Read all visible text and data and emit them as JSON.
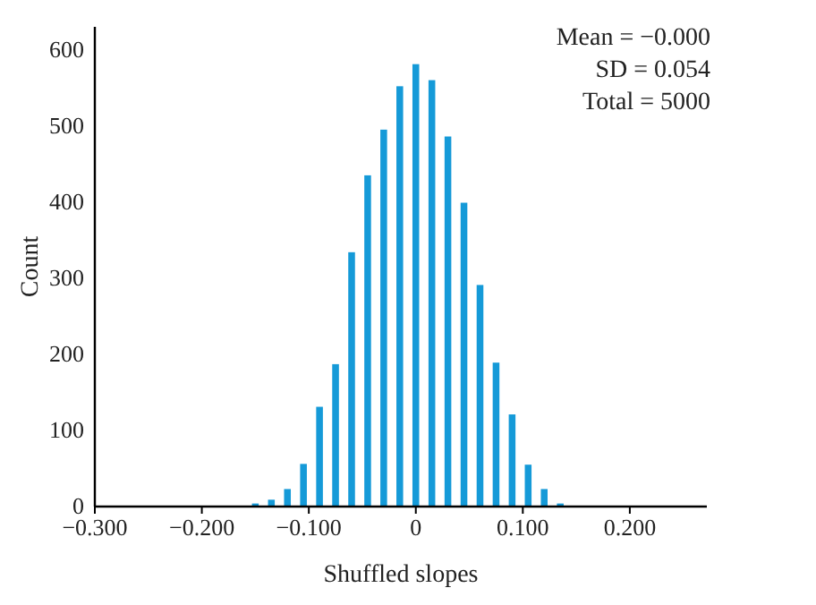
{
  "chart_data": {
    "type": "histogram",
    "xlabel": "Shuffled slopes",
    "ylabel": "Count",
    "color": "#159ad8",
    "bins": [
      -0.1575,
      -0.1425,
      -0.1275,
      -0.1125,
      -0.0975,
      -0.0825,
      -0.0675,
      -0.0525,
      -0.0375,
      -0.0225,
      -0.0075,
      0.0075,
      0.0225,
      0.0375,
      0.0525,
      0.0675,
      0.0825,
      0.0975,
      0.1125,
      0.1275,
      0.1425
    ],
    "values": [
      4,
      9,
      23,
      56,
      131,
      187,
      334,
      435,
      495,
      552,
      581,
      560,
      486,
      399,
      291,
      189,
      121,
      55,
      23,
      4
    ],
    "xlim": [
      -0.3,
      0.272
    ],
    "xticks": [
      {
        "value": -0.3,
        "label": "−0.300"
      },
      {
        "value": -0.2,
        "label": "−0.200"
      },
      {
        "value": -0.1,
        "label": "−0.100"
      },
      0,
      {
        "value": 0.1,
        "label": "0.100"
      },
      {
        "value": 0.2,
        "label": "0.200"
      }
    ],
    "ylim": [
      0,
      630
    ],
    "yticks": [
      0,
      100,
      200,
      300,
      400,
      500,
      600
    ],
    "grid": false,
    "annotations": [
      "Mean = −0.000",
      "SD = 0.054",
      "Total = 5000"
    ]
  }
}
